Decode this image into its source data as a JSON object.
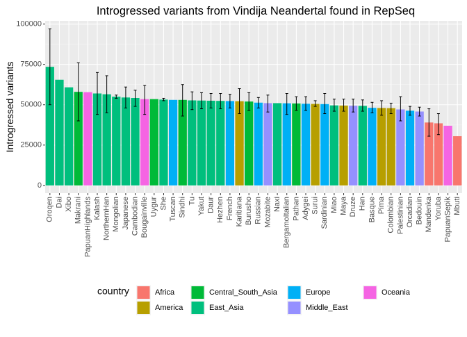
{
  "chart_data": {
    "type": "bar",
    "title": "Introgressed variants from Vindija Neandertal found in RepSeq",
    "xlabel": "",
    "ylabel": "Introgressed variants",
    "ylim": [
      -4800,
      102000
    ],
    "yticks": [
      0,
      25000,
      50000,
      75000,
      100000
    ],
    "grid": true,
    "legend_title": "country",
    "legend_position": "bottom",
    "categories": [
      "Oroqen",
      "Dai",
      "Xibo",
      "Makrani",
      "PapuanHighlands",
      "Kalash",
      "NorthernHan",
      "Mongolian",
      "Japanese",
      "Cambodian",
      "Bougainville",
      "Uygur",
      "She",
      "Tuscan",
      "Sindhi",
      "Tu",
      "Yakut",
      "Daur",
      "Hezhen",
      "French",
      "Karitiana",
      "Burusho",
      "Russian",
      "Mozabite",
      "Naxi",
      "BergamoItalian",
      "Pathan",
      "Adygei",
      "Surui",
      "Sardinian",
      "Miao",
      "Maya",
      "Druze",
      "Han",
      "Basque",
      "Pima",
      "Colombian",
      "Palestinian",
      "Orcadian",
      "Bedouin",
      "Mandenka",
      "Yoruba",
      "PapuanSepik",
      "Mbuti"
    ],
    "values": [
      73500,
      65500,
      60800,
      58000,
      57800,
      57000,
      56500,
      55000,
      54500,
      54200,
      53500,
      53500,
      53200,
      53000,
      53000,
      52700,
      52600,
      52500,
      52400,
      52300,
      52200,
      52000,
      51300,
      51000,
      51000,
      50900,
      50800,
      50600,
      50500,
      50400,
      49600,
      49500,
      49400,
      49300,
      48100,
      48000,
      47900,
      47100,
      46300,
      45800,
      39000,
      38500,
      37000,
      30500
    ],
    "error_low": [
      50000,
      null,
      null,
      40000,
      null,
      44000,
      45000,
      54000,
      48000,
      49000,
      44000,
      null,
      52500,
      null,
      43000,
      47000,
      47500,
      48000,
      47500,
      48000,
      44500,
      46500,
      48000,
      45500,
      null,
      44000,
      46500,
      46500,
      49000,
      44500,
      46000,
      46000,
      45500,
      46000,
      45000,
      43500,
      44500,
      40000,
      43500,
      43000,
      30500,
      31500,
      null,
      null
    ],
    "error_high": [
      97000,
      null,
      null,
      76000,
      null,
      70000,
      68000,
      56000,
      61000,
      59000,
      62000,
      null,
      54000,
      null,
      62500,
      58000,
      57500,
      57000,
      57000,
      56500,
      60000,
      57500,
      54500,
      56000,
      null,
      57000,
      55000,
      55000,
      52500,
      57000,
      53500,
      53500,
      53500,
      53000,
      51500,
      52500,
      51000,
      55000,
      49000,
      48500,
      47500,
      44500,
      null,
      null
    ],
    "groups": [
      "East_Asia",
      "East_Asia",
      "East_Asia",
      "Central_South_Asia",
      "Oceania",
      "East_Asia",
      "East_Asia",
      "East_Asia",
      "East_Asia",
      "East_Asia",
      "Oceania",
      "Central_South_Asia",
      "East_Asia",
      "Europe",
      "Central_South_Asia",
      "East_Asia",
      "East_Asia",
      "East_Asia",
      "East_Asia",
      "Europe",
      "America",
      "Central_South_Asia",
      "Europe",
      "Middle_East",
      "East_Asia",
      "Europe",
      "Central_South_Asia",
      "Europe",
      "America",
      "Europe",
      "East_Asia",
      "America",
      "Middle_East",
      "East_Asia",
      "Europe",
      "America",
      "America",
      "Middle_East",
      "Europe",
      "Middle_East",
      "Africa",
      "Africa",
      "Oceania",
      "Africa"
    ],
    "legend": [
      {
        "name": "Africa",
        "color": "#F8766D"
      },
      {
        "name": "America",
        "color": "#B79F00"
      },
      {
        "name": "Central_South_Asia",
        "color": "#00BA38"
      },
      {
        "name": "East_Asia",
        "color": "#00BF7D"
      },
      {
        "name": "Europe",
        "color": "#00B0F6"
      },
      {
        "name": "Middle_East",
        "color": "#9590FF"
      },
      {
        "name": "Oceania",
        "color": "#F564E3"
      }
    ]
  }
}
